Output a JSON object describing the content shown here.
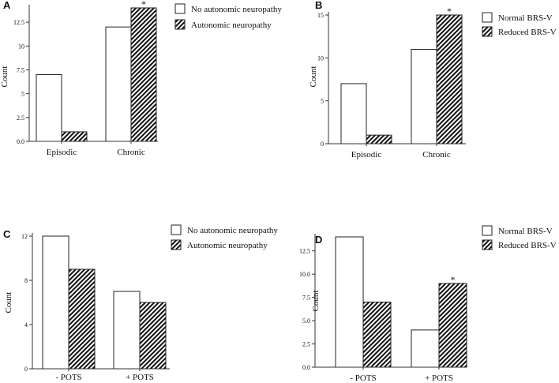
{
  "chart_data": [
    {
      "panel": "A",
      "type": "bar",
      "categories": [
        "Episodic",
        "Chronic"
      ],
      "series": [
        {
          "name": "No autonomic neuropathy",
          "pattern": "open",
          "values": [
            7,
            12
          ]
        },
        {
          "name": "Autonomic neuropathy",
          "pattern": "hatched",
          "values": [
            1,
            14
          ]
        }
      ],
      "ylabel": "Count",
      "ylim": [
        0,
        14
      ],
      "yticks": [
        0.0,
        2.5,
        5.0,
        7.5,
        10.0,
        12.5
      ],
      "ytick_labels": [
        "0.0",
        "2.5",
        "5",
        "7.5",
        "10",
        "12.5"
      ],
      "significance": [
        {
          "category": 1,
          "series": 1,
          "mark": "*"
        }
      ]
    },
    {
      "panel": "B",
      "type": "bar",
      "categories": [
        "Episodic",
        "Chronic"
      ],
      "series": [
        {
          "name": "Normal BRS-V",
          "pattern": "open",
          "values": [
            7,
            11
          ]
        },
        {
          "name": "Reduced BRS-V",
          "pattern": "hatched",
          "values": [
            1,
            15
          ]
        }
      ],
      "ylabel": "Count",
      "ylim": [
        0,
        15
      ],
      "yticks": [
        0,
        5,
        10,
        15
      ],
      "ytick_labels": [
        "0",
        "5",
        "10",
        "15"
      ],
      "significance": [
        {
          "category": 1,
          "series": 1,
          "mark": "*"
        }
      ]
    },
    {
      "panel": "C",
      "type": "bar",
      "categories": [
        "- POTS",
        "+ POTS"
      ],
      "series": [
        {
          "name": "No autonomic neuropathy",
          "pattern": "open",
          "values": [
            12,
            7
          ]
        },
        {
          "name": "Autonomic neuropathy",
          "pattern": "hatched",
          "values": [
            9,
            6
          ]
        }
      ],
      "ylabel": "Count",
      "ylim": [
        0,
        12
      ],
      "yticks": [
        0,
        4,
        8,
        12
      ],
      "ytick_labels": [
        "0",
        "4",
        "8",
        "12"
      ],
      "significance": []
    },
    {
      "panel": "D",
      "type": "bar",
      "categories": [
        "- POTS",
        "+ POTS"
      ],
      "series": [
        {
          "name": "Normal BRS-V",
          "pattern": "open",
          "values": [
            14,
            4
          ]
        },
        {
          "name": "Reduced BRS-V",
          "pattern": "hatched",
          "values": [
            7,
            9
          ]
        }
      ],
      "ylabel": "Count",
      "ylim": [
        0,
        14
      ],
      "yticks": [
        0.0,
        2.5,
        5.0,
        7.5,
        10.0,
        12.5
      ],
      "ytick_labels": [
        "0.0",
        "2.5",
        "5.0",
        "7.5",
        "10.0",
        "12.5"
      ],
      "significance": [
        {
          "category": 1,
          "series": 1,
          "mark": "*"
        }
      ]
    }
  ],
  "colors": {
    "bar_fill": "#ffffff",
    "bar_stroke": "#222222",
    "hatch": "#111111",
    "axis": "#333333"
  }
}
